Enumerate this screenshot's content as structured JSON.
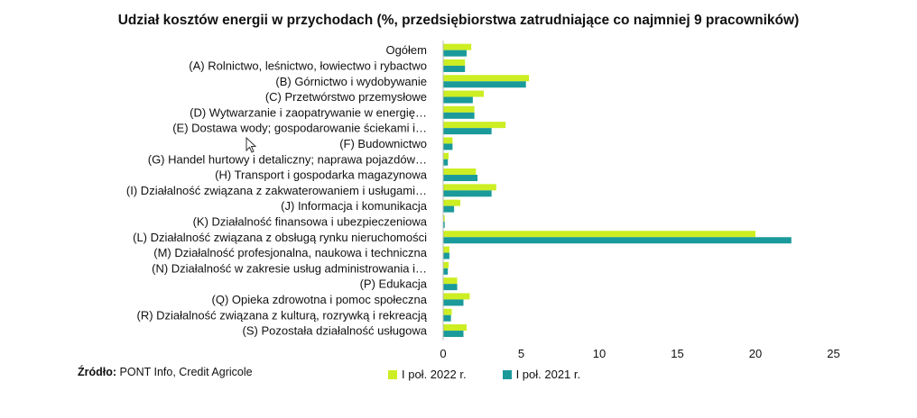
{
  "colors": {
    "series_2022": "#ccee22",
    "series_2021": "#1a9a9a"
  },
  "source": {
    "label": "Źródło:",
    "text": " PONT Info, Credit Agricole"
  },
  "chart_data": {
    "type": "bar",
    "orientation": "horizontal",
    "title": "Udział kosztów energii w przychodach (%, przedsiębiorstwa zatrudniające co najmniej 9 pracowników)",
    "categories": [
      "Ogółem",
      "(A) Rolnictwo, leśnictwo, łowiectwo i rybactwo",
      "(B) Górnictwo i wydobywanie",
      "(C) Przetwórstwo przemysłowe",
      "(D) Wytwarzanie i zaopatrywanie w energię…",
      "(E) Dostawa wody; gospodarowanie ściekami i…",
      "(F) Budownictwo",
      "(G) Handel hurtowy i detaliczny; naprawa pojazdów…",
      "(H) Transport i gospodarka magazynowa",
      "(I) Działalność związana z zakwaterowaniem i usługami…",
      "(J) Informacja i komunikacja",
      "(K) Działalność finansowa i ubezpieczeniowa",
      "(L) Działalność związana z obsługą rynku nieruchomości",
      "(M) Działalność profesjonalna, naukowa i techniczna",
      "(N) Działalność w zakresie usług administrowania i…",
      "(P) Edukacja",
      "(Q) Opieka zdrowotna i pomoc społeczna",
      "(R) Działalność związana z kulturą, rozrywką i rekreacją",
      "(S) Pozostała działalność usługowa"
    ],
    "series": [
      {
        "name": "I poł. 2022 r.",
        "values": [
          1.8,
          1.4,
          5.5,
          2.6,
          2.0,
          4.0,
          0.6,
          0.35,
          2.1,
          3.4,
          1.1,
          0.1,
          20.0,
          0.4,
          0.35,
          0.9,
          1.7,
          0.55,
          1.5
        ]
      },
      {
        "name": "I poł. 2021 r.",
        "values": [
          1.5,
          1.4,
          5.3,
          1.9,
          2.0,
          3.1,
          0.6,
          0.3,
          2.2,
          3.1,
          0.7,
          0.1,
          22.3,
          0.4,
          0.3,
          0.9,
          1.3,
          0.5,
          1.3
        ]
      }
    ],
    "xlim": [
      0,
      25
    ],
    "xticks": [
      0,
      5,
      10,
      15,
      20,
      25
    ],
    "grid": false,
    "legend": "bottom"
  }
}
